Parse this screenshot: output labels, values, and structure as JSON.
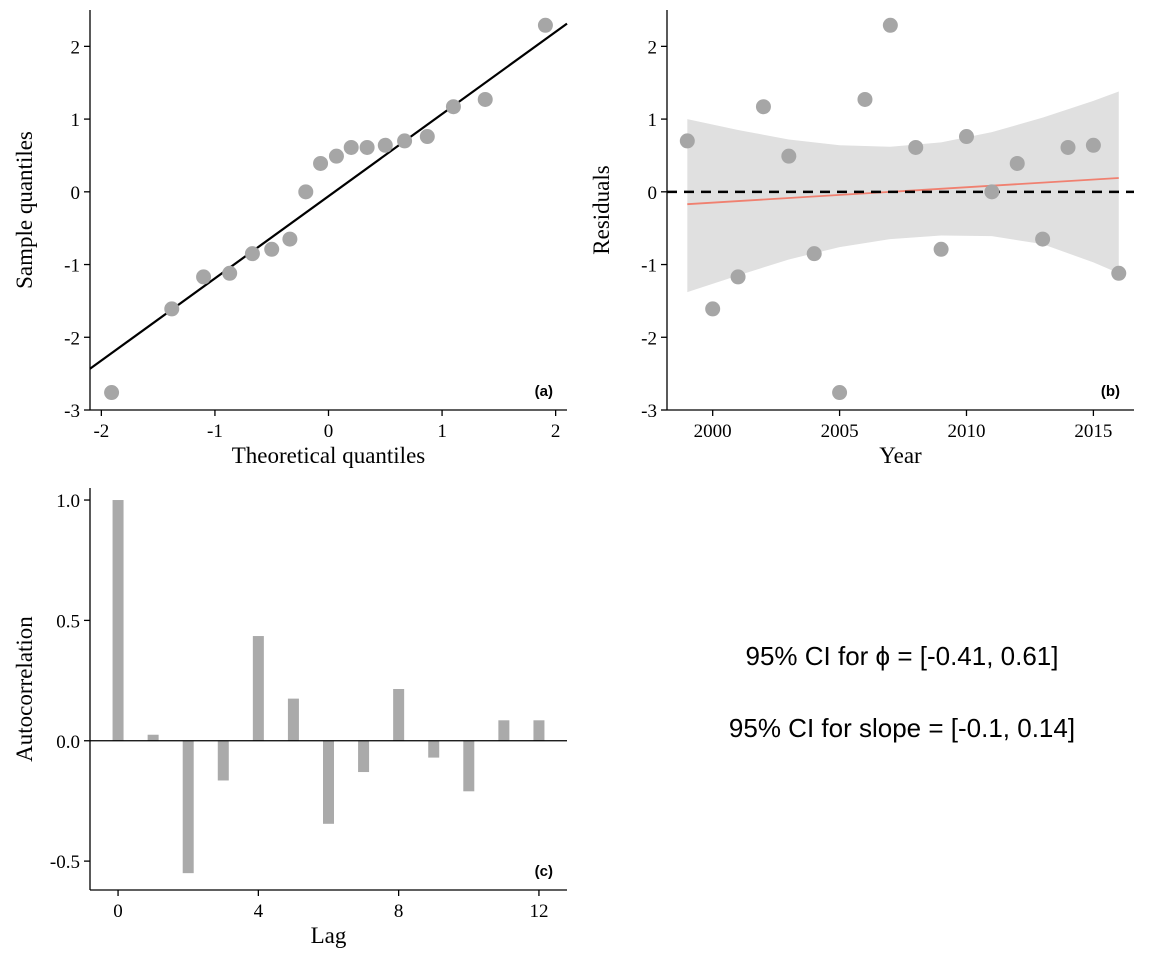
{
  "chart_data": [
    {
      "type": "scatter",
      "panel": "(a)",
      "xlabel": "Theoretical quantiles",
      "ylabel": "Sample quantiles",
      "xlim": [
        -2.1,
        2.1
      ],
      "ylim": [
        -3,
        2.5
      ],
      "xticks": [
        -2,
        -1,
        0,
        1,
        2
      ],
      "yticks": [
        -3,
        -2,
        -1,
        0,
        1,
        2
      ],
      "x": [
        -1.91,
        -1.38,
        -1.1,
        -0.87,
        -0.67,
        -0.5,
        -0.34,
        -0.2,
        -0.07,
        0.07,
        0.2,
        0.34,
        0.5,
        0.67,
        0.87,
        1.1,
        1.38,
        1.91
      ],
      "y": [
        -2.76,
        -1.61,
        -1.17,
        -1.12,
        -0.85,
        -0.79,
        -0.65,
        0.0,
        0.39,
        0.49,
        0.61,
        0.61,
        0.64,
        0.7,
        0.76,
        1.17,
        1.27,
        2.29
      ],
      "reference_line": {
        "slope": 1.13,
        "intercept": -0.06
      },
      "grid": false
    },
    {
      "type": "scatter",
      "panel": "(b)",
      "xlabel": "Year",
      "ylabel": "Residuals",
      "xlim": [
        1998.2,
        2016.6
      ],
      "ylim": [
        -3,
        2.5
      ],
      "xticks": [
        2000,
        2005,
        2010,
        2015
      ],
      "yticks": [
        -3,
        -2,
        -1,
        0,
        1,
        2
      ],
      "x": [
        1999,
        2000,
        2001,
        2002,
        2003,
        2004,
        2005,
        2006,
        2007,
        2008,
        2009,
        2010,
        2011,
        2012,
        2013,
        2014,
        2015,
        2016
      ],
      "y": [
        0.7,
        -1.61,
        -1.17,
        1.17,
        0.49,
        -0.85,
        -2.76,
        1.27,
        2.29,
        0.61,
        -0.79,
        0.76,
        0.0,
        0.39,
        -0.65,
        0.61,
        0.64,
        -1.12
      ],
      "trend": {
        "x": [
          1999,
          2016
        ],
        "y": [
          -0.17,
          0.19
        ],
        "color": "#f08070"
      },
      "band": {
        "x": [
          1999,
          2001,
          2003,
          2005,
          2007,
          2009,
          2011,
          2013,
          2015,
          2016
        ],
        "upper": [
          1.0,
          0.85,
          0.72,
          0.64,
          0.62,
          0.68,
          0.82,
          1.02,
          1.25,
          1.38
        ],
        "lower": [
          -1.38,
          -1.15,
          -0.93,
          -0.76,
          -0.65,
          -0.6,
          -0.61,
          -0.72,
          -0.97,
          -1.12
        ],
        "color": "#e0e0e0"
      },
      "zero_line": {
        "y": 0,
        "style": "dashed"
      },
      "grid": false
    },
    {
      "type": "bar",
      "panel": "(c)",
      "xlabel": "Lag",
      "ylabel": "Autocorrelation",
      "xlim": [
        -0.8,
        12.8
      ],
      "ylim": [
        -0.62,
        1.05
      ],
      "xticks": [
        0,
        4,
        8,
        12
      ],
      "yticks": [
        -0.5,
        0.0,
        0.5,
        1.0
      ],
      "yticklabels": [
        "-0.5",
        "0.0",
        "0.5",
        "1.0"
      ],
      "x": [
        0,
        1,
        2,
        3,
        4,
        5,
        6,
        7,
        8,
        9,
        10,
        11,
        12
      ],
      "values": [
        1.0,
        0.025,
        -0.55,
        -0.165,
        0.435,
        0.175,
        -0.345,
        -0.13,
        0.215,
        -0.07,
        -0.21,
        0.085,
        0.085
      ],
      "bar_color": "#aaaaaa",
      "grid": false
    }
  ],
  "annotations": {
    "ci_phi": "95% CI for ϕ =  [-0.41, 0.61]",
    "ci_slope": "95% CI for slope =  [-0.1, 0.14]"
  },
  "colors": {
    "points": "#a6a6a6",
    "line": "#000000"
  }
}
